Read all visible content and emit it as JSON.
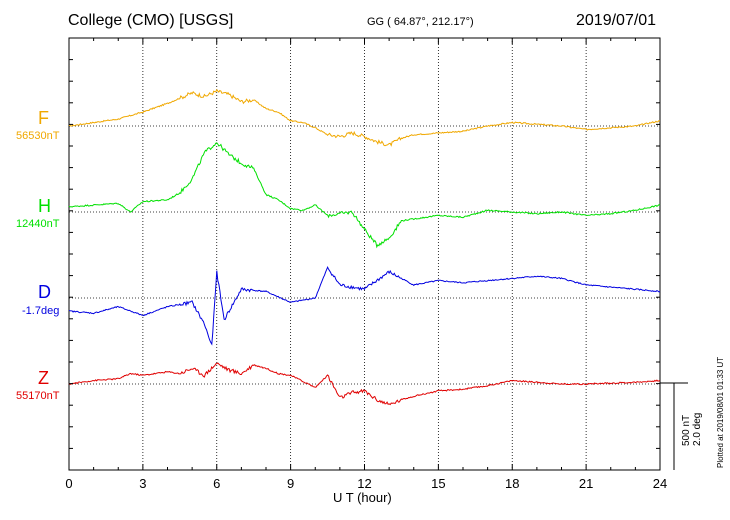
{
  "header": {
    "title": "College (CMO)  [USGS]",
    "coords": "GG ( 64.87°, 212.17°)",
    "date": "2019/07/01"
  },
  "scale": {
    "line1": "500 nT",
    "line2": "2.0 deg"
  },
  "plotted": "Plotted at 2019/08/01 01:33 UT",
  "chart_data": {
    "type": "line",
    "xlabel": "U T (hour)",
    "xlim": [
      0,
      24
    ],
    "xticks": [
      0,
      3,
      6,
      9,
      12,
      15,
      18,
      21,
      24
    ],
    "grid": true,
    "series": [
      {
        "name": "F",
        "baseline_label": "56530nT",
        "color": "#f0a800",
        "x": [
          0,
          1,
          2,
          3,
          4,
          4.5,
          5,
          5.5,
          6,
          6.5,
          7,
          7.5,
          8,
          8.5,
          9,
          9.5,
          10,
          10.5,
          11,
          11.5,
          12,
          12.5,
          13,
          13.5,
          14,
          15,
          16,
          17,
          18,
          19,
          20,
          21,
          22,
          23,
          24
        ],
        "y": [
          0,
          20,
          40,
          80,
          130,
          160,
          190,
          170,
          200,
          180,
          140,
          150,
          100,
          80,
          30,
          20,
          -10,
          -50,
          -60,
          -40,
          -60,
          -90,
          -110,
          -70,
          -50,
          -40,
          -30,
          0,
          20,
          10,
          0,
          -20,
          -10,
          0,
          30
        ]
      },
      {
        "name": "H",
        "baseline_label": "12440nT",
        "color": "#00e000",
        "x": [
          0,
          1,
          2,
          2.5,
          3,
          4,
          4.5,
          5,
          5.5,
          6,
          6.5,
          7,
          7.5,
          8,
          8.5,
          9,
          9.5,
          10,
          10.5,
          11,
          11.5,
          12,
          12.5,
          13,
          13.5,
          14,
          15,
          16,
          17,
          18,
          19,
          20,
          21,
          22,
          23,
          24
        ],
        "y": [
          30,
          40,
          50,
          0,
          60,
          70,
          110,
          190,
          340,
          400,
          330,
          280,
          250,
          100,
          70,
          20,
          10,
          40,
          -20,
          -10,
          0,
          -100,
          -190,
          -150,
          -50,
          -40,
          -20,
          -30,
          10,
          0,
          -10,
          0,
          -20,
          -10,
          10,
          40
        ]
      },
      {
        "name": "D",
        "baseline_label": "-1.7deg",
        "color": "#0000e0",
        "x": [
          0,
          1,
          2,
          3,
          4,
          5,
          5.5,
          5.8,
          6,
          6.3,
          7,
          8,
          9,
          10,
          10.5,
          11,
          12,
          13,
          14,
          15,
          16,
          17,
          18,
          19,
          20,
          21,
          22,
          23,
          24
        ],
        "y": [
          -0.3,
          -0.35,
          -0.2,
          -0.4,
          -0.2,
          -0.1,
          -0.6,
          -1.1,
          0.6,
          -0.5,
          0.2,
          0.15,
          -0.1,
          0.0,
          0.7,
          0.3,
          0.2,
          0.6,
          0.3,
          0.4,
          0.35,
          0.4,
          0.45,
          0.5,
          0.45,
          0.3,
          0.25,
          0.2,
          0.15
        ]
      },
      {
        "name": "Z",
        "baseline_label": "55170nT",
        "color": "#e00000",
        "x": [
          0,
          1,
          2,
          2.5,
          3,
          4,
          4.5,
          5,
          5.5,
          6,
          6.5,
          7,
          7.5,
          8,
          8.5,
          9,
          10,
          10.5,
          11,
          11.5,
          12,
          12.5,
          13,
          13.5,
          14,
          15,
          16,
          17,
          18,
          19,
          20,
          21,
          22,
          23,
          24
        ],
        "y": [
          0,
          20,
          30,
          60,
          50,
          70,
          60,
          90,
          50,
          120,
          80,
          60,
          110,
          90,
          60,
          50,
          -20,
          50,
          -80,
          -50,
          -40,
          -90,
          -120,
          -90,
          -70,
          -40,
          -30,
          -10,
          20,
          10,
          0,
          0,
          5,
          10,
          20
        ]
      }
    ]
  }
}
